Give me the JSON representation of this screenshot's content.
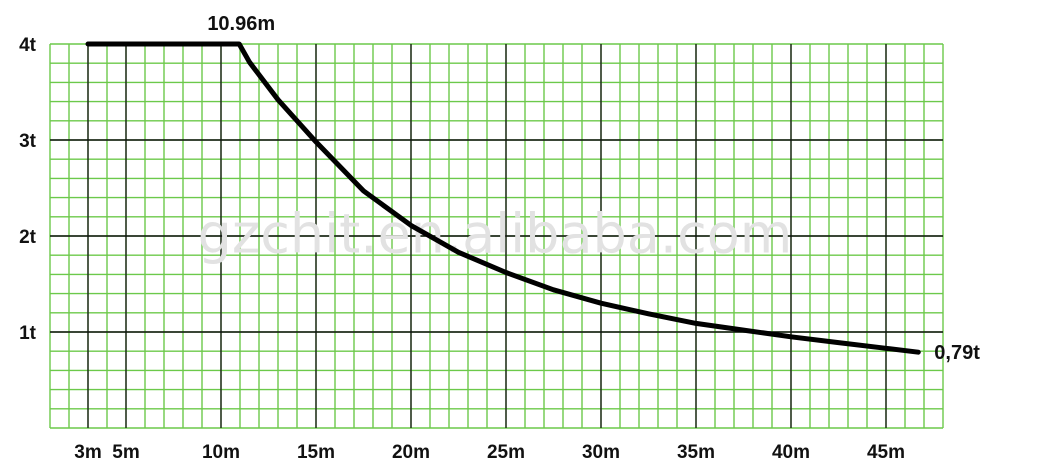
{
  "chart_data": {
    "type": "line",
    "title": "",
    "xlabel": "",
    "ylabel": "",
    "xlim": [
      1,
      48
    ],
    "ylim": [
      0,
      4
    ],
    "x_ticks": [
      3,
      5,
      10,
      15,
      20,
      25,
      30,
      35,
      40,
      45
    ],
    "x_tick_labels": [
      "3m",
      "5m",
      "10m",
      "15m",
      "20m",
      "25m",
      "30m",
      "35m",
      "40m",
      "45m"
    ],
    "y_ticks": [
      1,
      2,
      3,
      4
    ],
    "y_tick_labels": [
      "1t",
      "2t",
      "3t",
      "4t"
    ],
    "grid": true,
    "grid_color": "#6cc94a",
    "major_grid_color": "#111111",
    "line_color": "#000000",
    "series": [
      {
        "x": [
          3,
          10.96,
          11.5,
          13,
          15,
          17.5,
          20,
          22.5,
          25,
          27.5,
          30,
          32.5,
          35,
          37.5,
          40,
          42.5,
          45,
          46.7
        ],
        "values": [
          4.0,
          4.0,
          3.81,
          3.42,
          2.98,
          2.47,
          2.11,
          1.83,
          1.62,
          1.44,
          1.3,
          1.19,
          1.09,
          1.02,
          0.95,
          0.89,
          0.83,
          0.79
        ]
      }
    ],
    "annotations": [
      {
        "text": "10.96m",
        "x": 10.96,
        "y": 4.0
      },
      {
        "text": "0,79t",
        "x": 46.7,
        "y": 0.79
      }
    ],
    "watermark": "gzchit.en.alibaba.com"
  }
}
